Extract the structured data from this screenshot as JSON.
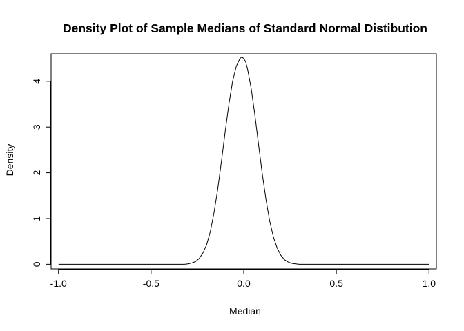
{
  "chart_data": {
    "type": "line",
    "title": "Density Plot of Sample Medians of Standard Normal Distibution",
    "xlabel": "Median",
    "ylabel": "Density",
    "xlim": [
      -1.04,
      1.04
    ],
    "ylim": [
      -0.1,
      4.6
    ],
    "x_ticks": [
      -1.0,
      -0.5,
      0.0,
      0.5,
      1.0
    ],
    "x_tick_labels": [
      "-1.0",
      "-0.5",
      "0.0",
      "0.5",
      "1.0"
    ],
    "y_ticks": [
      0,
      1,
      2,
      3,
      4
    ],
    "y_tick_labels": [
      "0",
      "1",
      "2",
      "3",
      "4"
    ],
    "grid": false,
    "legend": "none",
    "series": [
      {
        "color": "#000000",
        "x": [
          -1.0,
          -0.8,
          -0.6,
          -0.4,
          -0.32,
          -0.3,
          -0.28,
          -0.26,
          -0.24,
          -0.22,
          -0.2,
          -0.18,
          -0.16,
          -0.14,
          -0.12,
          -0.1,
          -0.08,
          -0.06,
          -0.04,
          -0.02,
          -0.01,
          0.0,
          0.01,
          0.02,
          0.04,
          0.06,
          0.08,
          0.1,
          0.12,
          0.14,
          0.16,
          0.18,
          0.2,
          0.22,
          0.24,
          0.26,
          0.28,
          0.3,
          0.32,
          0.4,
          0.6,
          0.8,
          1.0
        ],
        "y": [
          0.0,
          0.0,
          0.0,
          0.0,
          0.0,
          0.01,
          0.03,
          0.06,
          0.13,
          0.25,
          0.43,
          0.72,
          1.14,
          1.65,
          2.26,
          2.9,
          3.5,
          4.0,
          4.33,
          4.5,
          4.53,
          4.5,
          4.43,
          4.28,
          3.85,
          3.27,
          2.62,
          1.98,
          1.42,
          0.95,
          0.6,
          0.36,
          0.2,
          0.1,
          0.05,
          0.02,
          0.01,
          0.0,
          0.0,
          0.0,
          0.0,
          0.0,
          0.0
        ]
      }
    ]
  }
}
